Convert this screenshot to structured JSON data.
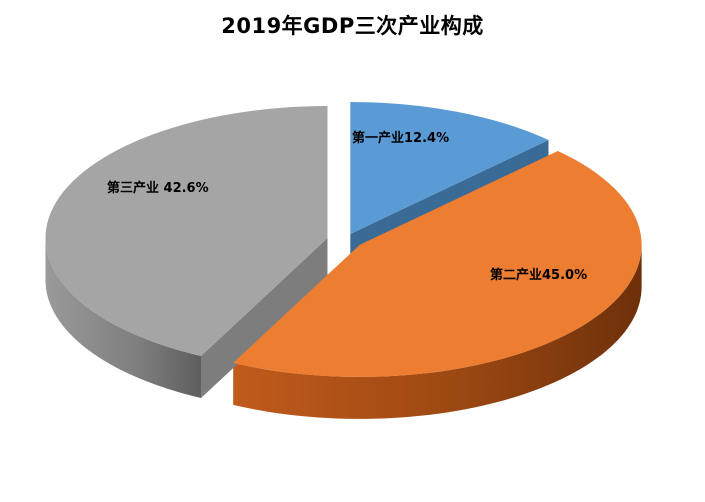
{
  "chart_data": {
    "type": "pie",
    "title": "2019年GDP三次产业构成",
    "categories": [
      "第一产业",
      "第二产业",
      "第三产业"
    ],
    "values": [
      12.4,
      45.0,
      42.6
    ],
    "labels": [
      "第一产业12.4%",
      "第二产业45.0%",
      "第三产业 42.6%"
    ],
    "colors": [
      "#5b9bd5",
      "#ed7d31",
      "#a5a5a5"
    ],
    "side_colors": [
      "#3a6a96",
      "#a34e16",
      "#7d7d7d"
    ],
    "unit": "%",
    "legend": "none",
    "style": "3d-exploded"
  }
}
